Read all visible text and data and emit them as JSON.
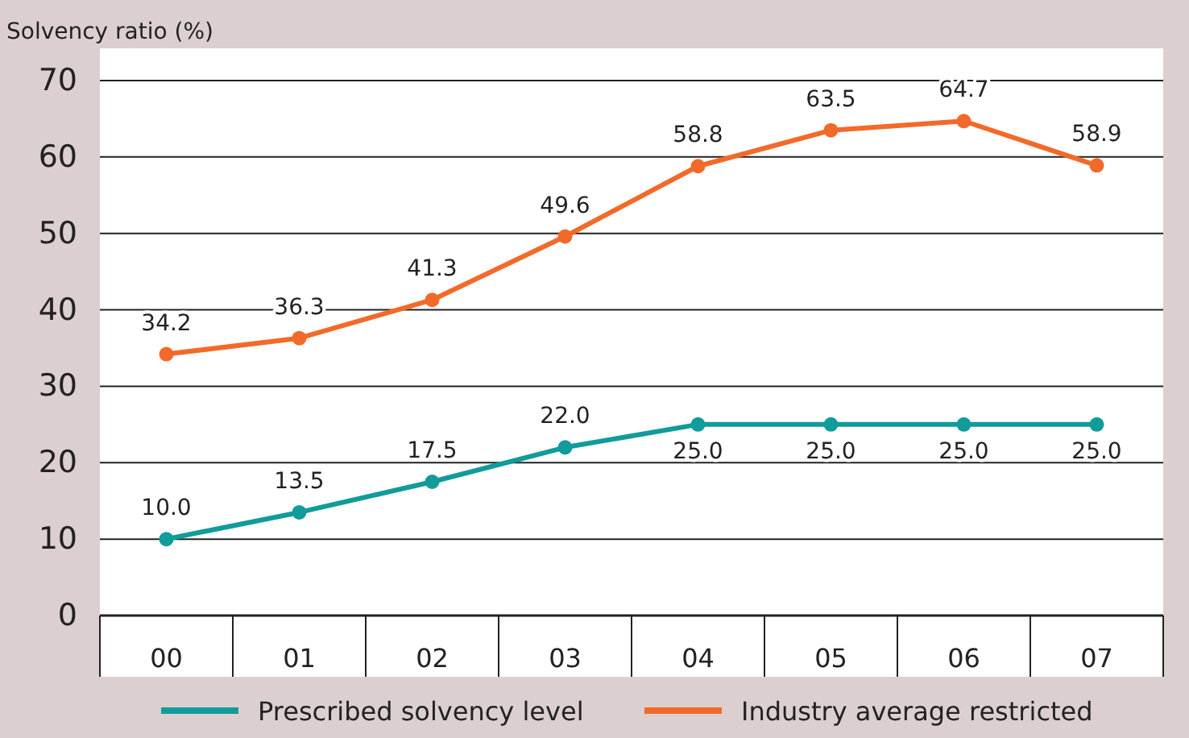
{
  "chart_data": {
    "type": "line",
    "ylabel": "Solvency ratio (%)",
    "categories": [
      "00",
      "01",
      "02",
      "03",
      "04",
      "05",
      "06",
      "07"
    ],
    "series": [
      {
        "name": "Prescribed solvency level",
        "color": "#129b9b",
        "values": [
          10.0,
          13.5,
          17.5,
          22.0,
          25.0,
          25.0,
          25.0,
          25.0
        ],
        "value_labels": [
          "10.0",
          "13.5",
          "17.5",
          "22.0",
          "25.0",
          "25.0",
          "25.0",
          "25.0"
        ]
      },
      {
        "name": "Industry average restricted",
        "color": "#f26a2a",
        "values": [
          34.2,
          36.3,
          41.3,
          49.6,
          58.8,
          63.5,
          64.7,
          58.9
        ],
        "value_labels": [
          "34.2",
          "36.3",
          "41.3",
          "49.6",
          "58.8",
          "63.5",
          "64.7",
          "58.9"
        ]
      }
    ],
    "ylim": [
      0,
      70
    ],
    "yticks": [
      0,
      10,
      20,
      30,
      40,
      50,
      60,
      70
    ],
    "grid": "y",
    "legend": "bottom",
    "marker": "circle",
    "line_style": "solid"
  }
}
